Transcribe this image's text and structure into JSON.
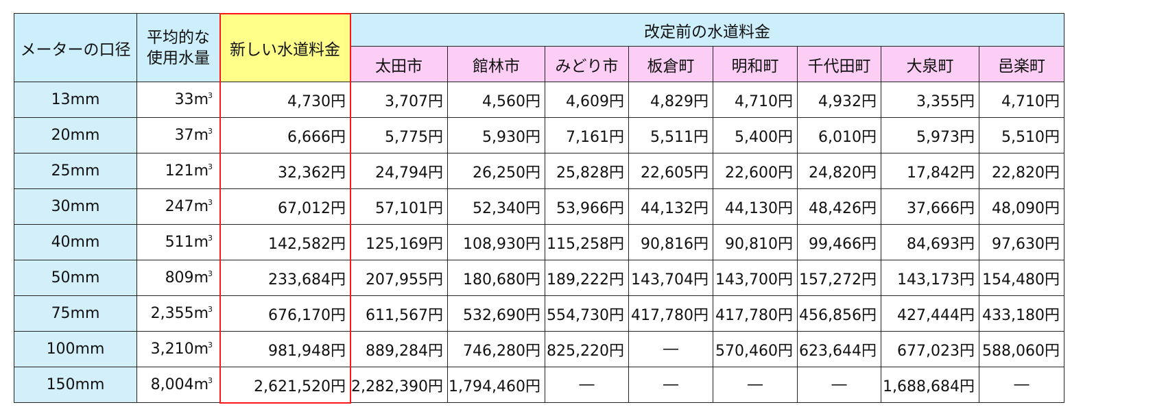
{
  "headers": {
    "meter_size": "メーターの口径",
    "avg_volume_line1": "平均的な",
    "avg_volume_line2": "使用水量",
    "new_fee": "新しい水道料金",
    "old_fee_group": "改定前の水道料金",
    "municipalities": [
      "太田市",
      "館林市",
      "みどり市",
      "板倉町",
      "明和町",
      "千代田町",
      "大泉町",
      "邑楽町"
    ]
  },
  "volume_unit": "m",
  "volume_unit_sup": "3",
  "colors": {
    "header_blue": "#cdeefb",
    "header_yellow": "#ffff8a",
    "header_pink": "#fccdf5",
    "size_column": "#d3effa",
    "new_fee_frame": "#ff1515"
  },
  "rows": [
    {
      "size": "13mm",
      "volume": "33",
      "new_fee": "4,730円",
      "old": [
        "3,707円",
        "4,560円",
        "4,609円",
        "4,829円",
        "4,710円",
        "4,932円",
        "3,355円",
        "4,710円"
      ]
    },
    {
      "size": "20mm",
      "volume": "37",
      "new_fee": "6,666円",
      "old": [
        "5,775円",
        "5,930円",
        "7,161円",
        "5,511円",
        "5,400円",
        "6,010円",
        "5,973円",
        "5,510円"
      ]
    },
    {
      "size": "25mm",
      "volume": "121",
      "new_fee": "32,362円",
      "old": [
        "24,794円",
        "26,250円",
        "25,828円",
        "22,605円",
        "22,600円",
        "24,820円",
        "17,842円",
        "22,820円"
      ]
    },
    {
      "size": "30mm",
      "volume": "247",
      "new_fee": "67,012円",
      "old": [
        "57,101円",
        "52,340円",
        "53,966円",
        "44,132円",
        "44,130円",
        "48,426円",
        "37,666円",
        "48,090円"
      ]
    },
    {
      "size": "40mm",
      "volume": "511",
      "new_fee": "142,582円",
      "old": [
        "125,169円",
        "108,930円",
        "115,258円",
        "90,816円",
        "90,810円",
        "99,466円",
        "84,693円",
        "97,630円"
      ]
    },
    {
      "size": "50mm",
      "volume": "809",
      "new_fee": "233,684円",
      "old": [
        "207,955円",
        "180,680円",
        "189,222円",
        "143,704円",
        "143,700円",
        "157,272円",
        "143,173円",
        "154,480円"
      ]
    },
    {
      "size": "75mm",
      "volume": "2,355",
      "new_fee": "676,170円",
      "old": [
        "611,567円",
        "532,690円",
        "554,730円",
        "417,780円",
        "417,780円",
        "456,856円",
        "427,444円",
        "433,180円"
      ]
    },
    {
      "size": "100mm",
      "volume": "3,210",
      "new_fee": "981,948円",
      "old": [
        "889,284円",
        "746,280円",
        "825,220円",
        "―",
        "570,460円",
        "623,644円",
        "677,023円",
        "588,060円"
      ]
    },
    {
      "size": "150mm",
      "volume": "8,004",
      "new_fee": "2,621,520円",
      "old": [
        "2,282,390円",
        "1,794,460円",
        "―",
        "―",
        "―",
        "―",
        "1,688,684円",
        "―"
      ]
    }
  ]
}
